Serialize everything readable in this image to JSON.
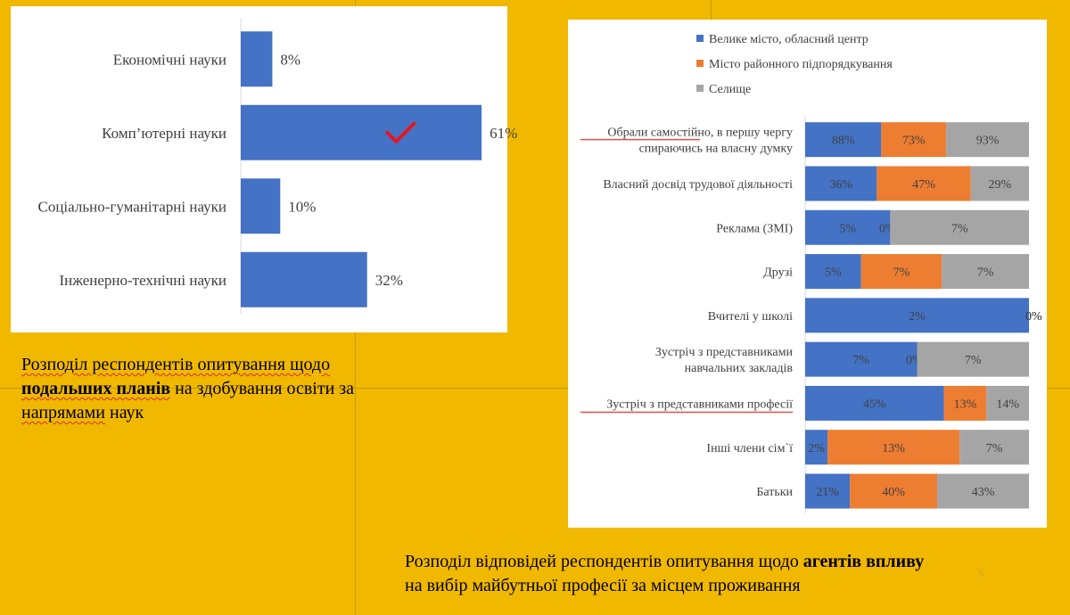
{
  "chart_data": [
    {
      "type": "bar",
      "orientation": "horizontal",
      "categories": [
        "Економічні науки",
        "Комп’ютерні науки",
        "Соціально-гуманітарні  науки",
        "Інженерно-технічні  науки"
      ],
      "values": [
        8,
        61,
        10,
        32
      ],
      "value_labels": [
        "8%",
        "61%",
        "10%",
        "32%"
      ],
      "value_unit": "%",
      "xlim": [
        0,
        70
      ],
      "grid": false,
      "legend": "none",
      "color": "#4472c4",
      "highlight": {
        "category": "Комп’ютерні науки",
        "mark": "red checkmark",
        "color": "#e8141e"
      }
    },
    {
      "type": "bar",
      "orientation": "horizontal",
      "stacked": true,
      "categories": [
        "Обрали самостійно, в першу чергу спираючись на власну думку",
        "Власний  досвід трудової діяльності",
        "Реклама (ЗМІ)",
        "Друзі",
        "Вчителі у школі",
        "Зустріч з представниками навчальних закладів",
        "Зустріч з представниками професії",
        "Інші члени сім`ї",
        "Батьки"
      ],
      "category_lines": [
        [
          "Обрали самостійно, в першу чергу",
          "спираючись на власну думку"
        ],
        [
          "Власний  досвід трудової діяльності"
        ],
        [
          "Реклама (ЗМІ)"
        ],
        [
          "Друзі"
        ],
        [
          "Вчителі у школі"
        ],
        [
          "Зустріч з представниками",
          "навчальних закладів"
        ],
        [
          "Зустріч з представниками професії"
        ],
        [
          "Інші члени сім`ї"
        ],
        [
          "Батьки"
        ]
      ],
      "underlined_categories": [
        0,
        6
      ],
      "series": [
        {
          "name": "Велике місто, обласний центр",
          "color": "#4472c4",
          "values": [
            88,
            36,
            5,
            5,
            2,
            7,
            45,
            2,
            21
          ]
        },
        {
          "name": "Місто районного підпорядкування",
          "color": "#ed7d31",
          "values": [
            73,
            47,
            0,
            7,
            0,
            0,
            13,
            13,
            40
          ]
        },
        {
          "name": "Селище",
          "color": "#a5a5a5",
          "values": [
            93,
            29,
            7,
            7,
            0,
            7,
            14,
            7,
            43
          ]
        }
      ],
      "segment_widths_share": [
        [
          0.34,
          0.29,
          0.37
        ],
        [
          0.32,
          0.42,
          0.26
        ],
        [
          0.38,
          0.0,
          0.62
        ],
        [
          0.25,
          0.36,
          0.39
        ],
        [
          1.0,
          0.0,
          0.0
        ],
        [
          0.5,
          0.0,
          0.5
        ],
        [
          0.62,
          0.19,
          0.19
        ],
        [
          0.1,
          0.59,
          0.31
        ],
        [
          0.2,
          0.39,
          0.41
        ]
      ],
      "value_unit": "%",
      "legend": "top",
      "grid": false
    }
  ],
  "captions": {
    "left": {
      "line1": "Розподіл респондентів опитування щодо",
      "bold": "подальших планів",
      "after_bold": " на здобування освіти за",
      "squiggle": "напрямами",
      "end": " наук"
    },
    "right": {
      "line1_start": "Розподіл відповідей респондентів опитування щодо ",
      "line1_bold": "агентів впливу",
      "line2": "на вибір  майбутньої професії за місцем проживання"
    }
  },
  "page_number": "5"
}
